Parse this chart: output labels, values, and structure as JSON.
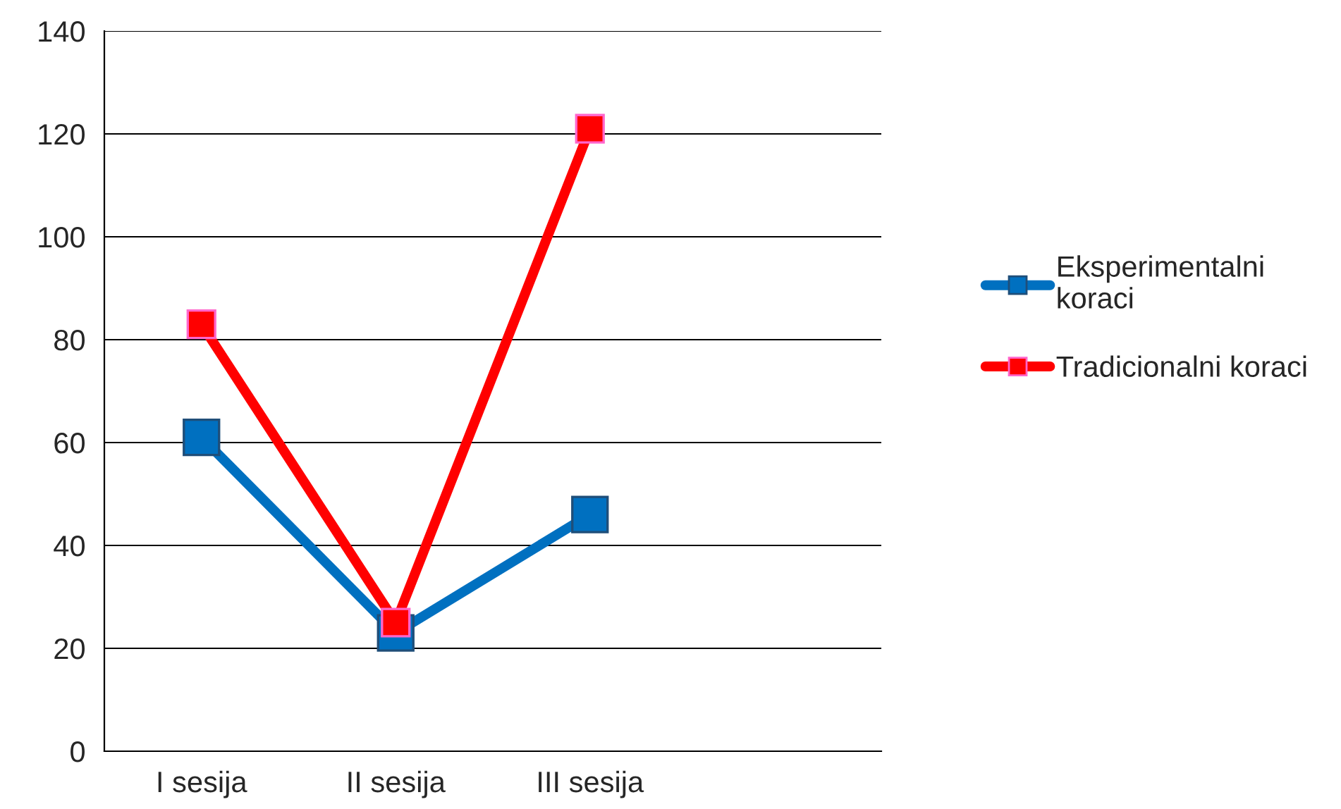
{
  "chart_data": {
    "type": "line",
    "categories": [
      "I sesija",
      "II sesija",
      "III sesija",
      null
    ],
    "series": [
      {
        "name": "Eksperimentalni\nkoraci",
        "color": "#0070c0",
        "values": [
          61,
          23,
          46,
          null
        ]
      },
      {
        "name": "Tradicionalni koraci",
        "color": "#ff0000",
        "values": [
          83,
          25,
          121,
          null
        ]
      }
    ],
    "ylim": [
      0,
      140
    ],
    "yticks": [
      0,
      20,
      40,
      60,
      80,
      100,
      120,
      140
    ],
    "grid": "y",
    "legend": "right",
    "marker": "square",
    "line_style": "solid"
  }
}
